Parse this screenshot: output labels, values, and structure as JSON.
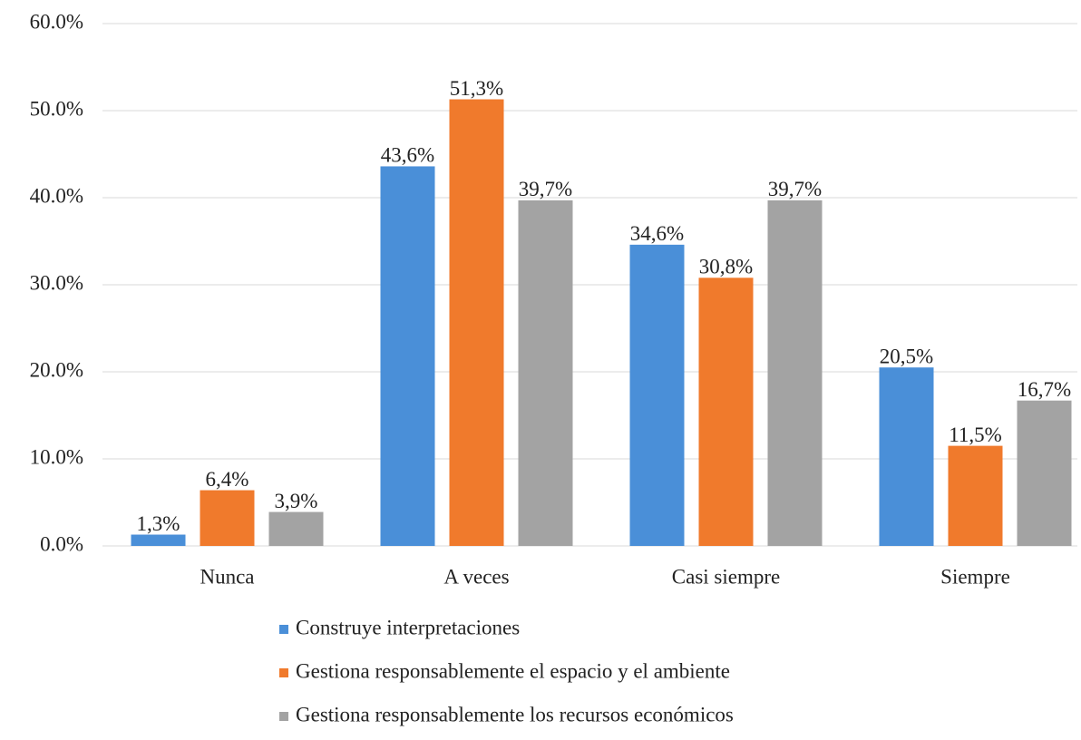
{
  "chart_data": {
    "type": "bar",
    "categories": [
      "Nunca",
      "A veces",
      "Casi siempre",
      "Siempre"
    ],
    "series": [
      {
        "name": "Construye interpretaciones",
        "color": "#4a8fd8",
        "values": [
          1.3,
          43.6,
          34.6,
          20.5
        ],
        "value_labels": [
          "1,3%",
          "43,6%",
          "34,6%",
          "20,5%"
        ]
      },
      {
        "name": "Gestiona responsablemente el espacio y el ambiente",
        "color": "#f07a2c",
        "values": [
          6.4,
          51.3,
          30.8,
          11.5
        ],
        "value_labels": [
          "6,4%",
          "51,3%",
          "30,8%",
          "11,5%"
        ]
      },
      {
        "name": "Gestiona responsablemente los recursos económicos",
        "color": "#a3a3a3",
        "values": [
          3.9,
          39.7,
          39.7,
          16.7
        ],
        "value_labels": [
          "3,9%",
          "39,7%",
          "39,7%",
          "16,7%"
        ]
      }
    ],
    "ylim": [
      0,
      60
    ],
    "yticks": [
      {
        "value": 0,
        "label": "0.0%"
      },
      {
        "value": 10,
        "label": "10.0%"
      },
      {
        "value": 20,
        "label": "20.0%"
      },
      {
        "value": 30,
        "label": "30.0%"
      },
      {
        "value": 40,
        "label": "40.0%"
      },
      {
        "value": 50,
        "label": "50.0%"
      },
      {
        "value": 60,
        "label": "60.0%"
      }
    ],
    "grid": true,
    "legend": "bottom"
  }
}
